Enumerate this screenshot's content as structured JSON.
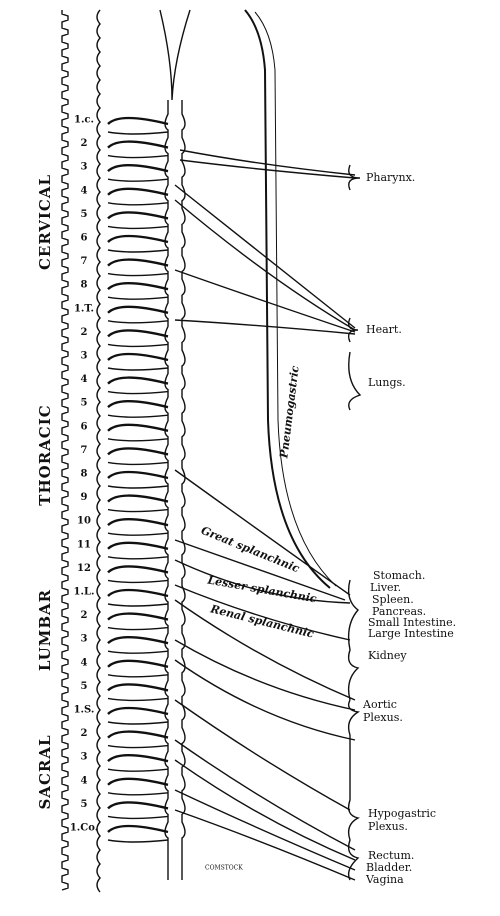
{
  "segments": [
    "1.c.",
    "2",
    "3",
    "4",
    "5",
    "6",
    "7",
    "8",
    "1.T.",
    "2",
    "3",
    "4",
    "5",
    "6",
    "7",
    "8",
    "9",
    "10",
    "11",
    "12",
    "1.L.",
    "2",
    "3",
    "4",
    "5",
    "1.S.",
    "2",
    "3",
    "4",
    "5",
    "1.Co."
  ],
  "regions": [
    "CERVICAL",
    "THORACIC",
    "LUMBAR",
    "SACRAL"
  ],
  "nerves": [
    "Pneumogastric",
    "Great splanchnic",
    "Lesser splanchnic",
    "Renal splanchnic"
  ],
  "organs": [
    "Pharynx.",
    "Heart.",
    "Lungs.",
    "Stomach.",
    "Liver.",
    "Spleen.",
    "Pancreas.",
    "Small Intestine.",
    "Large Intestine",
    "Kidney",
    "Aortic",
    "Plexus.",
    "Hypogastric",
    "Plexus.",
    "Rectum.",
    "Bladder.",
    "Vagina"
  ],
  "signature": "COMSTOCK"
}
